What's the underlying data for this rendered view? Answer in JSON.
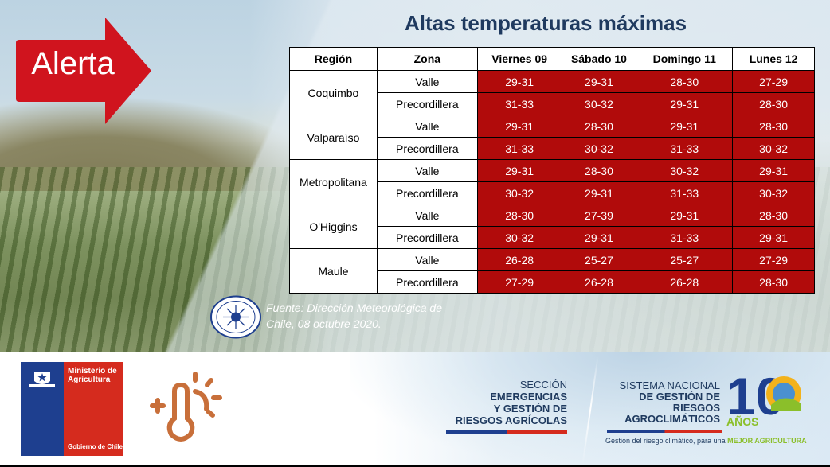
{
  "alert": {
    "label": "Alerta"
  },
  "title": "Altas temperaturas máximas",
  "table": {
    "headers": [
      "Región",
      "Zona",
      "Viernes 09",
      "Sábado 10",
      "Domingo 11",
      "Lunes 12"
    ],
    "regions": [
      {
        "name": "Coquimbo",
        "rows": [
          {
            "zone": "Valle",
            "values": [
              "29-31",
              "29-31",
              "28-30",
              "27-29"
            ]
          },
          {
            "zone": "Precordillera",
            "values": [
              "31-33",
              "30-32",
              "29-31",
              "28-30"
            ]
          }
        ]
      },
      {
        "name": "Valparaíso",
        "rows": [
          {
            "zone": "Valle",
            "values": [
              "29-31",
              "28-30",
              "29-31",
              "28-30"
            ]
          },
          {
            "zone": "Precordillera",
            "values": [
              "31-33",
              "30-32",
              "31-33",
              "30-32"
            ]
          }
        ]
      },
      {
        "name": "Metropolitana",
        "rows": [
          {
            "zone": "Valle",
            "values": [
              "29-31",
              "28-30",
              "30-32",
              "29-31"
            ]
          },
          {
            "zone": "Precordillera",
            "values": [
              "30-32",
              "29-31",
              "31-33",
              "30-32"
            ]
          }
        ]
      },
      {
        "name": "O'Higgins",
        "rows": [
          {
            "zone": "Valle",
            "values": [
              "28-30",
              "27-39",
              "29-31",
              "28-30"
            ]
          },
          {
            "zone": "Precordillera",
            "values": [
              "30-32",
              "29-31",
              "31-33",
              "29-31"
            ]
          }
        ]
      },
      {
        "name": "Maule",
        "rows": [
          {
            "zone": "Valle",
            "values": [
              "26-28",
              "25-27",
              "25-27",
              "27-29"
            ]
          },
          {
            "zone": "Precordillera",
            "values": [
              "27-29",
              "26-28",
              "26-28",
              "28-30"
            ]
          }
        ]
      }
    ]
  },
  "source": {
    "line1": "Fuente: Dirección Meteorológica de",
    "line2": "Chile, 08 octubre 2020."
  },
  "footer": {
    "ministry_line1": "Ministerio de",
    "ministry_line2": "Agricultura",
    "ministry_bottom": "Gobierno de Chile",
    "section_top": "SECCIÓN",
    "section_line1": "EMERGENCIAS",
    "section_line2": "Y GESTIÓN DE",
    "section_line3": "RIESGOS AGRÍCOLAS",
    "system_top": "SISTEMA NACIONAL",
    "system_line1": "DE GESTIÓN DE",
    "system_line2": "RIESGOS",
    "system_line3": "AGROCLIMÁTICOS",
    "tagline_main": "Gestión del riesgo climático, para una",
    "tagline_highlight": "MEJOR AGRICULTURA",
    "anniversary_number": "10",
    "anniversary_word": "AÑOS"
  },
  "colors": {
    "alert_red": "#d0141e",
    "cell_red": "#b10b0b",
    "title_navy": "#1f3a5f",
    "heat_icon": "#c86f3a"
  },
  "icons": [
    "alert-arrow-icon",
    "meteorological-seal-icon",
    "chile-shield-icon",
    "thermometer-sun-icon"
  ]
}
